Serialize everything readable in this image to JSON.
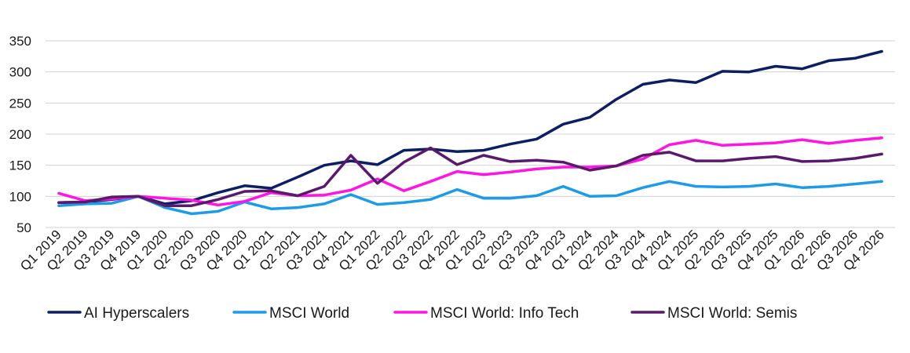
{
  "chart_data": {
    "type": "line",
    "title": "",
    "xlabel": "",
    "ylabel": "",
    "ylim": [
      50,
      350
    ],
    "yticks": [
      50,
      100,
      150,
      200,
      250,
      300,
      350
    ],
    "grid": "horizontal",
    "legend_position": "bottom",
    "categories": [
      "Q1 2019",
      "Q2 2019",
      "Q3 2019",
      "Q4 2019",
      "Q1 2020",
      "Q2 2020",
      "Q3 2020",
      "Q4 2020",
      "Q1 2021",
      "Q2 2021",
      "Q3 2021",
      "Q4 2021",
      "Q1 2022",
      "Q2 2022",
      "Q3 2022",
      "Q4 2022",
      "Q1 2023",
      "Q2 2023",
      "Q3 2023",
      "Q4 2023",
      "Q1 2024",
      "Q2 2024",
      "Q3 2024",
      "Q4 2024",
      "Q1 2025",
      "Q2 2025",
      "Q3 2025",
      "Q4 2025",
      "Q1 2026",
      "Q2 2026",
      "Q3 2026",
      "Q4 2026"
    ],
    "series": [
      {
        "name": "AI Hyperscalers",
        "color": "#0d1f63",
        "values": [
          90,
          91,
          95,
          100,
          88,
          93,
          106,
          117,
          113,
          131,
          150,
          157,
          151,
          174,
          176,
          172,
          174,
          184,
          192,
          216,
          227,
          256,
          280,
          287,
          283,
          301,
          300,
          309,
          305,
          318,
          322,
          333
        ]
      },
      {
        "name": "MSCI World",
        "color": "#1e9be6",
        "values": [
          85,
          88,
          89,
          100,
          82,
          72,
          76,
          91,
          80,
          82,
          88,
          103,
          87,
          90,
          95,
          111,
          97,
          97,
          101,
          116,
          100,
          101,
          114,
          124,
          116,
          115,
          116,
          120,
          114,
          116,
          120,
          124
        ]
      },
      {
        "name": "MSCI World: Info Tech",
        "color": "#ff14e6",
        "values": [
          105,
          93,
          96,
          100,
          97,
          94,
          86,
          92,
          106,
          101,
          102,
          110,
          128,
          109,
          124,
          140,
          135,
          139,
          144,
          147,
          147,
          149,
          160,
          183,
          190,
          182,
          184,
          186,
          191,
          185,
          190,
          194
        ]
      },
      {
        "name": "MSCI World: Semis",
        "color": "#5a1a6b",
        "values": [
          90,
          91,
          99,
          100,
          85,
          85,
          95,
          108,
          109,
          101,
          116,
          166,
          121,
          155,
          178,
          151,
          166,
          156,
          158,
          155,
          142,
          149,
          166,
          171,
          157,
          157,
          161,
          164,
          156,
          157,
          161,
          168
        ]
      }
    ]
  }
}
